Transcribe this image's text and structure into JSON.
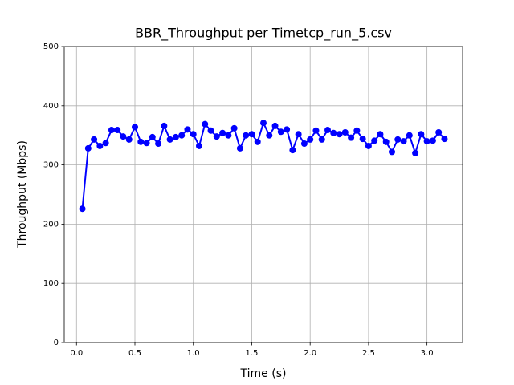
{
  "chart_data": {
    "type": "line",
    "title": "BBR_Throughput per Timetcp_run_5.csv",
    "x_label": "Time (s)",
    "y_label": "Throughput (Mbps)",
    "x": [
      0.05,
      0.1,
      0.15,
      0.2,
      0.25,
      0.3,
      0.35,
      0.4,
      0.45,
      0.5,
      0.55,
      0.6,
      0.65,
      0.7,
      0.75,
      0.8,
      0.85,
      0.9,
      0.95,
      1.0,
      1.05,
      1.1,
      1.15,
      1.2,
      1.25,
      1.3,
      1.35,
      1.4,
      1.45,
      1.5,
      1.55,
      1.6,
      1.65,
      1.7,
      1.75,
      1.8,
      1.85,
      1.9,
      1.95,
      2.0,
      2.05,
      2.1,
      2.15,
      2.2,
      2.25,
      2.3,
      2.35,
      2.4,
      2.45,
      2.5,
      2.55,
      2.6,
      2.65,
      2.7,
      2.75,
      2.8,
      2.85,
      2.9,
      2.95,
      3.0,
      3.05,
      3.1,
      3.15
    ],
    "values": [
      226,
      328,
      343,
      332,
      337,
      359,
      359,
      348,
      343,
      364,
      339,
      337,
      347,
      336,
      366,
      343,
      347,
      350,
      360,
      352,
      332,
      369,
      358,
      348,
      354,
      350,
      362,
      328,
      350,
      352,
      339,
      371,
      350,
      366,
      356,
      360,
      325,
      352,
      336,
      343,
      358,
      343,
      359,
      354,
      352,
      355,
      346,
      358,
      344,
      332,
      341,
      352,
      339,
      322,
      343,
      340,
      350,
      320,
      352,
      340,
      341,
      355,
      344
    ],
    "color": "#0000ff",
    "xlim": [
      -0.105,
      3.305
    ],
    "ylim": [
      0,
      500
    ],
    "xticks": [
      {
        "value": 0,
        "label": "0.0"
      },
      0.5,
      {
        "value": 1,
        "label": "1.0"
      },
      1.5,
      {
        "value": 2,
        "label": "2.0"
      },
      2.5,
      {
        "value": 3,
        "label": "3.0"
      }
    ],
    "yticks": [
      0,
      100,
      200,
      300,
      400,
      500
    ],
    "grid": true
  }
}
